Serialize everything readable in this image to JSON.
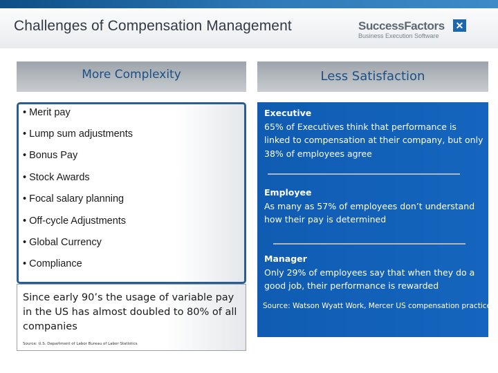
{
  "header": {
    "title": "Challenges of Compensation Management",
    "logo": {
      "name": "SuccessFactors",
      "tagline": "Business Execution Software"
    }
  },
  "left_panel": {
    "heading": "More Complexity",
    "bullets": [
      "• Merit pay",
      "• Lump sum adjustments",
      "• Bonus Pay",
      "• Stock Awards",
      "• Focal salary planning",
      "• Off-cycle Adjustments",
      "• Global Currency",
      "• Compliance"
    ],
    "note": "Since early 90’s the usage of variable pay in the US has almost doubled to 80% of all companies",
    "note_source": "Source: U.S. Department of Labor Bureau of Labor Statistics"
  },
  "right_panel": {
    "heading": "Less Satisfaction",
    "items": [
      {
        "title": "Executive",
        "text": "65% of Executives think that performance is linked to compensation at their company, but only 38% of employees agree"
      },
      {
        "title": "Employee",
        "text": "As many as 57% of employees don’t understand how their pay is determined"
      },
      {
        "title": "Manager",
        "text": "Only 29% of employees say that when they do a good job, their performance is rewarded"
      }
    ],
    "source": "Source: Watson Wyatt Work, Mercer US compensation practice"
  }
}
